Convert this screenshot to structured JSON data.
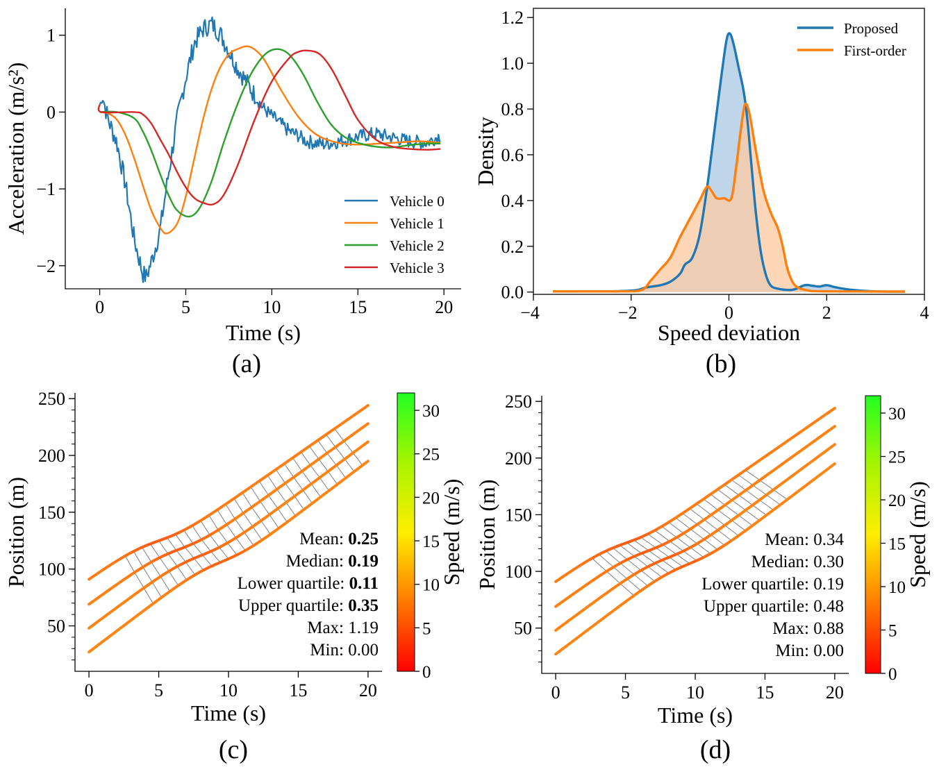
{
  "colors": {
    "blue": "#1f77b4",
    "orange": "#ff7f0e",
    "green": "#2ca02c",
    "red": "#d62728",
    "hatch": "#7f7f7f",
    "blue_fill": "#aac8e3",
    "orange_fill": "#fcc9a0",
    "cbar_top": "#22ff22",
    "cbar_mid": "#ffee00",
    "cbar_bottom": "#ff0000"
  },
  "chart_data": [
    {
      "id": "a",
      "panel_label": "(a)",
      "type": "line",
      "xlabel": "Time (s)",
      "ylabel": "Acceleration (m/s²)",
      "xlim": [
        -2,
        21
      ],
      "ylim": [
        -2.3,
        1.35
      ],
      "xticks": [
        0,
        5,
        10,
        15,
        20
      ],
      "xtick_labels": [
        "0",
        "5",
        "10",
        "15",
        "20"
      ],
      "yticks": [
        -2,
        -1,
        0,
        1
      ],
      "ytick_labels": [
        "−2",
        "−1",
        "0",
        "1"
      ],
      "legend": {
        "position": "lower-right",
        "entries": [
          "Vehicle 0",
          "Vehicle 1",
          "Vehicle 2",
          "Vehicle 3"
        ]
      },
      "series": [
        {
          "name": "Vehicle 0",
          "color": "blue",
          "points": [
            [
              0,
              0.1
            ],
            [
              0.2,
              0.17
            ],
            [
              0.5,
              -0.1
            ],
            [
              1,
              -0.4
            ],
            [
              1.5,
              -0.95
            ],
            [
              2,
              -1.65
            ],
            [
              2.5,
              -2.1
            ],
            [
              2.7,
              -2.15
            ],
            [
              3,
              -1.95
            ],
            [
              3.5,
              -1.55
            ],
            [
              4,
              -0.8
            ],
            [
              4.5,
              -0.1
            ],
            [
              5,
              0.45
            ],
            [
              5.5,
              0.9
            ],
            [
              6,
              1.08
            ],
            [
              6.5,
              1.15
            ],
            [
              7,
              1.02
            ],
            [
              7.5,
              0.8
            ],
            [
              8,
              0.58
            ],
            [
              8.5,
              0.4
            ],
            [
              9,
              0.22
            ],
            [
              9.5,
              0.05
            ],
            [
              10,
              -0.05
            ],
            [
              10.5,
              -0.15
            ],
            [
              11,
              -0.25
            ],
            [
              11.5,
              -0.3
            ],
            [
              12,
              -0.38
            ],
            [
              13,
              -0.42
            ],
            [
              14,
              -0.38
            ],
            [
              15,
              -0.32
            ],
            [
              16,
              -0.28
            ],
            [
              17,
              -0.33
            ],
            [
              18,
              -0.38
            ],
            [
              19,
              -0.4
            ],
            [
              19.8,
              -0.3
            ]
          ]
        },
        {
          "name": "Vehicle 1",
          "color": "orange",
          "points": [
            [
              0,
              0
            ],
            [
              0.5,
              -0.02
            ],
            [
              1,
              -0.1
            ],
            [
              1.5,
              -0.3
            ],
            [
              2,
              -0.6
            ],
            [
              2.5,
              -0.95
            ],
            [
              3,
              -1.28
            ],
            [
              3.5,
              -1.5
            ],
            [
              3.9,
              -1.58
            ],
            [
              4.5,
              -1.45
            ],
            [
              5,
              -1.1
            ],
            [
              5.5,
              -0.6
            ],
            [
              6,
              -0.1
            ],
            [
              6.5,
              0.3
            ],
            [
              7,
              0.58
            ],
            [
              7.5,
              0.75
            ],
            [
              8,
              0.82
            ],
            [
              8.7,
              0.85
            ],
            [
              9.5,
              0.7
            ],
            [
              10.5,
              0.3
            ],
            [
              11.5,
              -0.05
            ],
            [
              12.5,
              -0.28
            ],
            [
              13.5,
              -0.38
            ],
            [
              14.5,
              -0.42
            ],
            [
              15.5,
              -0.42
            ],
            [
              17,
              -0.4
            ],
            [
              18.5,
              -0.38
            ],
            [
              19.8,
              -0.4
            ]
          ]
        },
        {
          "name": "Vehicle 2",
          "color": "green",
          "points": [
            [
              0,
              0
            ],
            [
              1,
              0
            ],
            [
              2,
              -0.08
            ],
            [
              2.5,
              -0.25
            ],
            [
              3,
              -0.5
            ],
            [
              3.5,
              -0.8
            ],
            [
              4,
              -1.08
            ],
            [
              4.5,
              -1.28
            ],
            [
              5.2,
              -1.36
            ],
            [
              5.8,
              -1.25
            ],
            [
              6.5,
              -0.9
            ],
            [
              7.2,
              -0.4
            ],
            [
              8,
              0.1
            ],
            [
              8.8,
              0.5
            ],
            [
              9.6,
              0.75
            ],
            [
              10.3,
              0.82
            ],
            [
              11,
              0.75
            ],
            [
              11.8,
              0.5
            ],
            [
              12.6,
              0.15
            ],
            [
              13.4,
              -0.15
            ],
            [
              14.2,
              -0.32
            ],
            [
              15,
              -0.4
            ],
            [
              16,
              -0.45
            ],
            [
              17,
              -0.46
            ],
            [
              18,
              -0.43
            ],
            [
              19,
              -0.41
            ],
            [
              19.8,
              -0.41
            ]
          ]
        },
        {
          "name": "Vehicle 3",
          "color": "red",
          "points": [
            [
              0,
              0.1
            ],
            [
              0.1,
              0
            ],
            [
              2,
              0
            ],
            [
              2.5,
              -0.03
            ],
            [
              3,
              -0.15
            ],
            [
              3.5,
              -0.35
            ],
            [
              4,
              -0.55
            ],
            [
              4.5,
              -0.78
            ],
            [
              5,
              -0.98
            ],
            [
              5.5,
              -1.12
            ],
            [
              6,
              -1.18
            ],
            [
              6.6,
              -1.2
            ],
            [
              7.2,
              -1.08
            ],
            [
              8,
              -0.7
            ],
            [
              9,
              -0.1
            ],
            [
              10,
              0.4
            ],
            [
              11,
              0.7
            ],
            [
              11.5,
              0.78
            ],
            [
              12.1,
              0.8
            ],
            [
              12.8,
              0.75
            ],
            [
              13.5,
              0.55
            ],
            [
              14.3,
              0.2
            ],
            [
              15,
              -0.1
            ],
            [
              16,
              -0.35
            ],
            [
              17,
              -0.45
            ],
            [
              18,
              -0.48
            ],
            [
              19,
              -0.49
            ],
            [
              19.8,
              -0.48
            ]
          ]
        }
      ]
    },
    {
      "id": "b",
      "panel_label": "(b)",
      "type": "area",
      "xlabel": "Speed deviation",
      "ylabel": "Density",
      "xlim": [
        -4,
        4
      ],
      "ylim": [
        -0.01,
        1.24
      ],
      "xticks": [
        -4,
        -2,
        0,
        2,
        4
      ],
      "xtick_labels": [
        "−4",
        "−2",
        "0",
        "2",
        "4"
      ],
      "yticks": [
        0,
        0.2,
        0.4,
        0.6,
        0.8,
        1.0,
        1.2
      ],
      "ytick_labels": [
        "0.0",
        "0.2",
        "0.4",
        "0.6",
        "0.8",
        "1.0",
        "1.2"
      ],
      "legend": {
        "position": "top-right",
        "entries": [
          "Proposed",
          "First-order"
        ]
      },
      "series": [
        {
          "name": "Proposed",
          "color": "blue",
          "fill": "blue_fill",
          "points": [
            [
              -3.6,
              0.003
            ],
            [
              -2.4,
              0.003
            ],
            [
              -1.9,
              0.008
            ],
            [
              -1.7,
              0.02
            ],
            [
              -1.4,
              0.03
            ],
            [
              -1.2,
              0.045
            ],
            [
              -1.0,
              0.08
            ],
            [
              -0.9,
              0.12
            ],
            [
              -0.75,
              0.15
            ],
            [
              -0.6,
              0.25
            ],
            [
              -0.45,
              0.45
            ],
            [
              -0.3,
              0.7
            ],
            [
              -0.15,
              0.95
            ],
            [
              -0.05,
              1.1
            ],
            [
              0.02,
              1.13
            ],
            [
              0.1,
              1.08
            ],
            [
              0.2,
              0.98
            ],
            [
              0.3,
              0.88
            ],
            [
              0.38,
              0.75
            ],
            [
              0.45,
              0.58
            ],
            [
              0.55,
              0.35
            ],
            [
              0.65,
              0.18
            ],
            [
              0.75,
              0.08
            ],
            [
              0.85,
              0.03
            ],
            [
              1.0,
              0.015
            ],
            [
              1.3,
              0.01
            ],
            [
              1.55,
              0.03
            ],
            [
              1.7,
              0.028
            ],
            [
              1.85,
              0.024
            ],
            [
              2.0,
              0.03
            ],
            [
              2.2,
              0.02
            ],
            [
              2.5,
              0.01
            ],
            [
              3.0,
              0.003
            ],
            [
              3.6,
              0.002
            ]
          ]
        },
        {
          "name": "First-order",
          "color": "orange",
          "fill": "orange_fill",
          "points": [
            [
              -3.6,
              0.003
            ],
            [
              -2.3,
              0.003
            ],
            [
              -1.8,
              0.008
            ],
            [
              -1.6,
              0.05
            ],
            [
              -1.4,
              0.1
            ],
            [
              -1.2,
              0.15
            ],
            [
              -1.0,
              0.24
            ],
            [
              -0.8,
              0.32
            ],
            [
              -0.6,
              0.4
            ],
            [
              -0.45,
              0.46
            ],
            [
              -0.35,
              0.44
            ],
            [
              -0.25,
              0.41
            ],
            [
              -0.1,
              0.41
            ],
            [
              0.05,
              0.41
            ],
            [
              0.15,
              0.55
            ],
            [
              0.25,
              0.72
            ],
            [
              0.33,
              0.82
            ],
            [
              0.42,
              0.78
            ],
            [
              0.55,
              0.62
            ],
            [
              0.7,
              0.45
            ],
            [
              0.85,
              0.35
            ],
            [
              1.0,
              0.28
            ],
            [
              1.1,
              0.2
            ],
            [
              1.2,
              0.1
            ],
            [
              1.35,
              0.03
            ],
            [
              1.6,
              0.008
            ],
            [
              2.0,
              0.003
            ],
            [
              3.6,
              0.002
            ]
          ]
        }
      ]
    },
    {
      "id": "c",
      "panel_label": "(c)",
      "type": "line",
      "xlabel": "Time (s)",
      "ylabel": "Position (m)",
      "colorbar_label": "Speed (m/s)",
      "xlim": [
        -1,
        21
      ],
      "ylim": [
        10,
        255
      ],
      "xticks": [
        0,
        5,
        10,
        15,
        20
      ],
      "xtick_labels": [
        "0",
        "5",
        "10",
        "15",
        "20"
      ],
      "yticks": [
        50,
        100,
        150,
        200,
        250
      ],
      "ytick_labels": [
        "50",
        "100",
        "150",
        "200",
        "250"
      ],
      "colorbar_range": [
        0,
        32
      ],
      "colorbar_ticks": [
        0,
        5,
        10,
        15,
        20,
        25,
        30
      ],
      "trajectory_start_positions": [
        91,
        69,
        48,
        27
      ],
      "trajectory_end_positions": [
        244,
        228,
        212,
        195
      ],
      "hatch": {
        "from_vehicle": 0,
        "to_vehicle": 3,
        "t_start": 2.6,
        "t_end": 19.8,
        "step": 0.6,
        "lag": 2.0,
        "direction": "lag"
      },
      "stats": [
        {
          "label": "Mean: ",
          "value": "0.25",
          "bold": true
        },
        {
          "label": "Median: ",
          "value": "0.19",
          "bold": true
        },
        {
          "label": "Lower quartile: ",
          "value": "0.11",
          "bold": true
        },
        {
          "label": "Upper quartile: ",
          "value": "0.35",
          "bold": true
        },
        {
          "label": "Max: ",
          "value": "1.19",
          "bold": false
        },
        {
          "label": "Min: ",
          "value": "0.00",
          "bold": false
        }
      ]
    },
    {
      "id": "d",
      "panel_label": "(d)",
      "type": "line",
      "xlabel": "Time (s)",
      "ylabel": "Position (m)",
      "colorbar_label": "Speed (m/s)",
      "xlim": [
        -1,
        21
      ],
      "ylim": [
        10,
        255
      ],
      "xticks": [
        0,
        5,
        10,
        15,
        20
      ],
      "xtick_labels": [
        "0",
        "5",
        "10",
        "15",
        "20"
      ],
      "yticks": [
        50,
        100,
        150,
        200,
        250
      ],
      "ytick_labels": [
        "50",
        "100",
        "150",
        "200",
        "250"
      ],
      "colorbar_range": [
        0,
        32
      ],
      "colorbar_ticks": [
        0,
        5,
        10,
        15,
        20,
        25,
        30
      ],
      "trajectory_start_positions": [
        91,
        69,
        48,
        27
      ],
      "trajectory_end_positions": [
        244,
        228,
        212,
        195
      ],
      "hatch": {
        "from_vehicle": 0,
        "to_vehicle": 3,
        "t_start": 2.6,
        "t_end": 13.7,
        "step": 0.5,
        "lag": 3.0,
        "direction": "lead"
      },
      "stats": [
        {
          "label": "Mean: ",
          "value": "0.34",
          "bold": false
        },
        {
          "label": "Median: ",
          "value": "0.30",
          "bold": false
        },
        {
          "label": "Lower quartile: ",
          "value": "0.19",
          "bold": false
        },
        {
          "label": "Upper quartile: ",
          "value": "0.48",
          "bold": false
        },
        {
          "label": "Max: ",
          "value": "0.88",
          "bold": false
        },
        {
          "label": "Min: ",
          "value": "0.00",
          "bold": false
        }
      ]
    }
  ]
}
